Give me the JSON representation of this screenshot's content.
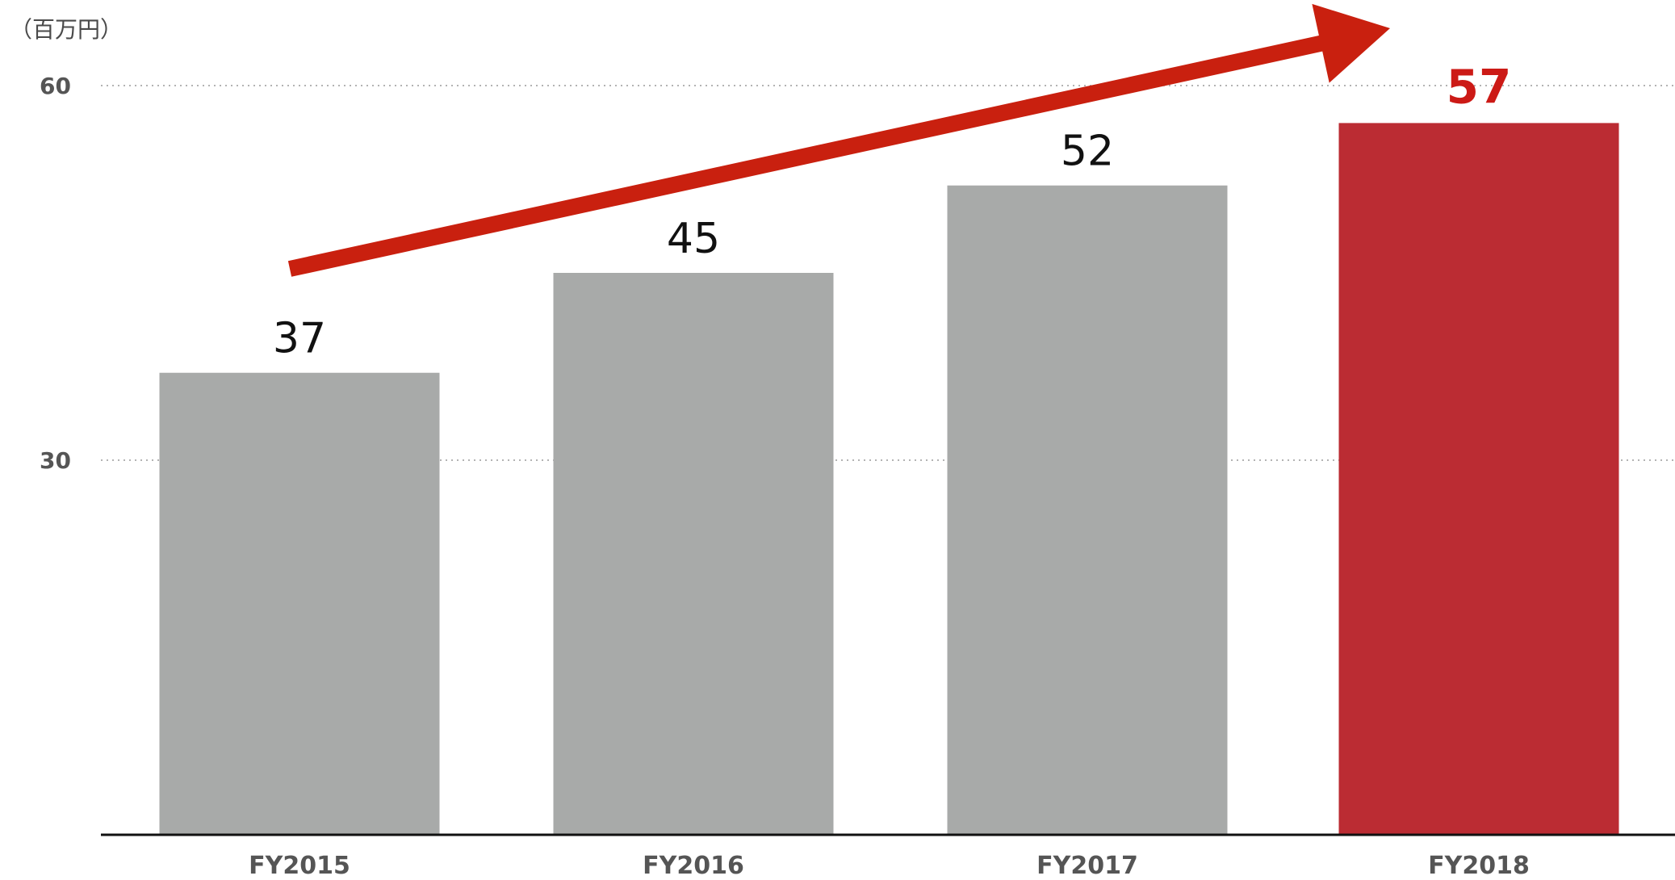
{
  "chart_data": {
    "type": "bar",
    "unit_label": "（百万円）",
    "categories": [
      "FY2015",
      "FY2016",
      "FY2017",
      "FY2018"
    ],
    "values": [
      37,
      45,
      52,
      57
    ],
    "ylim": [
      0,
      60
    ],
    "yticks": [
      {
        "label": "60",
        "value": 60
      },
      {
        "label": "30",
        "value": 30
      }
    ],
    "grid": true,
    "highlight_index": 3,
    "trend_arrow": true,
    "colors": {
      "bar": "#a8aaa9",
      "highlight_bar": "#bb2c33",
      "highlight_label": "#cc1a16",
      "arrow": "#c9200f",
      "grid": "#9a9a9a",
      "axis": "#111111"
    }
  }
}
